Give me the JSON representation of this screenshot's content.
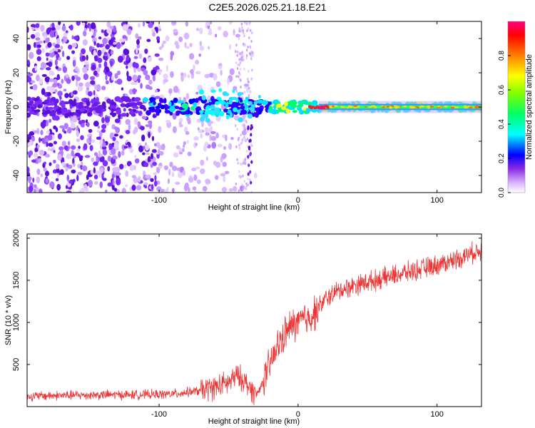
{
  "title": "C2E5.2026.025.21.18.E21",
  "chart_data": [
    {
      "type": "heatmap",
      "title": "C2E5.2026.025.21.18.E21",
      "xlabel": "Height of straight line (km)",
      "ylabel": "Frequency (Hz)",
      "xlim": [
        -195,
        132
      ],
      "ylim": [
        -50,
        50
      ],
      "x_ticks": [
        "-100",
        "0",
        "100"
      ],
      "x_tick_values": [
        -100,
        0,
        100
      ],
      "y_ticks": [
        "40",
        "20",
        "0",
        "-20",
        "-40"
      ],
      "y_tick_values": [
        40,
        20,
        0,
        -20,
        -40
      ],
      "description_note": "Spectrogram: scattered noise (purple) below about -30 km; energy concentrated near 0 Hz, rising to maximum near +20 km and continuing as a narrow band to 130 km.",
      "colorbar": {
        "label": "Normalized spectral amplitude",
        "range": [
          0,
          1
        ],
        "ticks": [
          "0.0",
          "0.2",
          "0.4",
          "0.6",
          "0.8"
        ],
        "tick_values": [
          0.0,
          0.2,
          0.4,
          0.6,
          0.8
        ],
        "colors": [
          "#ffffff",
          "#c080ff",
          "#8000ff",
          "#0000ff",
          "#00ffff",
          "#00ff00",
          "#ffff00",
          "#ff8000",
          "#ff0000",
          "#ff0080"
        ]
      }
    },
    {
      "type": "line",
      "xlabel": "Height of straight line (km)",
      "ylabel": "SNR (10 * v/v)",
      "xlim": [
        -195,
        132
      ],
      "ylim": [
        0,
        2050
      ],
      "x_ticks": [
        "-100",
        "0",
        "100"
      ],
      "x_tick_values": [
        -100,
        0,
        100
      ],
      "y_ticks": [
        "2000",
        "1500",
        "1000",
        "500"
      ],
      "y_tick_values": [
        2000,
        1500,
        1000,
        500
      ],
      "line_color": "#ee3333",
      "series": [
        {
          "name": "SNR",
          "x": [
            -195,
            -180,
            -160,
            -140,
            -120,
            -100,
            -90,
            -80,
            -70,
            -60,
            -50,
            -45,
            -40,
            -35,
            -30,
            -25,
            -20,
            -15,
            -10,
            -5,
            0,
            5,
            10,
            15,
            20,
            25,
            30,
            40,
            50,
            60,
            70,
            80,
            90,
            100,
            110,
            120,
            130
          ],
          "y": [
            120,
            130,
            135,
            140,
            140,
            145,
            150,
            170,
            190,
            230,
            280,
            360,
            330,
            230,
            140,
            300,
            500,
            700,
            850,
            950,
            1000,
            1040,
            1080,
            1180,
            1280,
            1340,
            1380,
            1440,
            1480,
            1520,
            1560,
            1600,
            1640,
            1680,
            1730,
            1790,
            1850
          ]
        }
      ]
    }
  ]
}
